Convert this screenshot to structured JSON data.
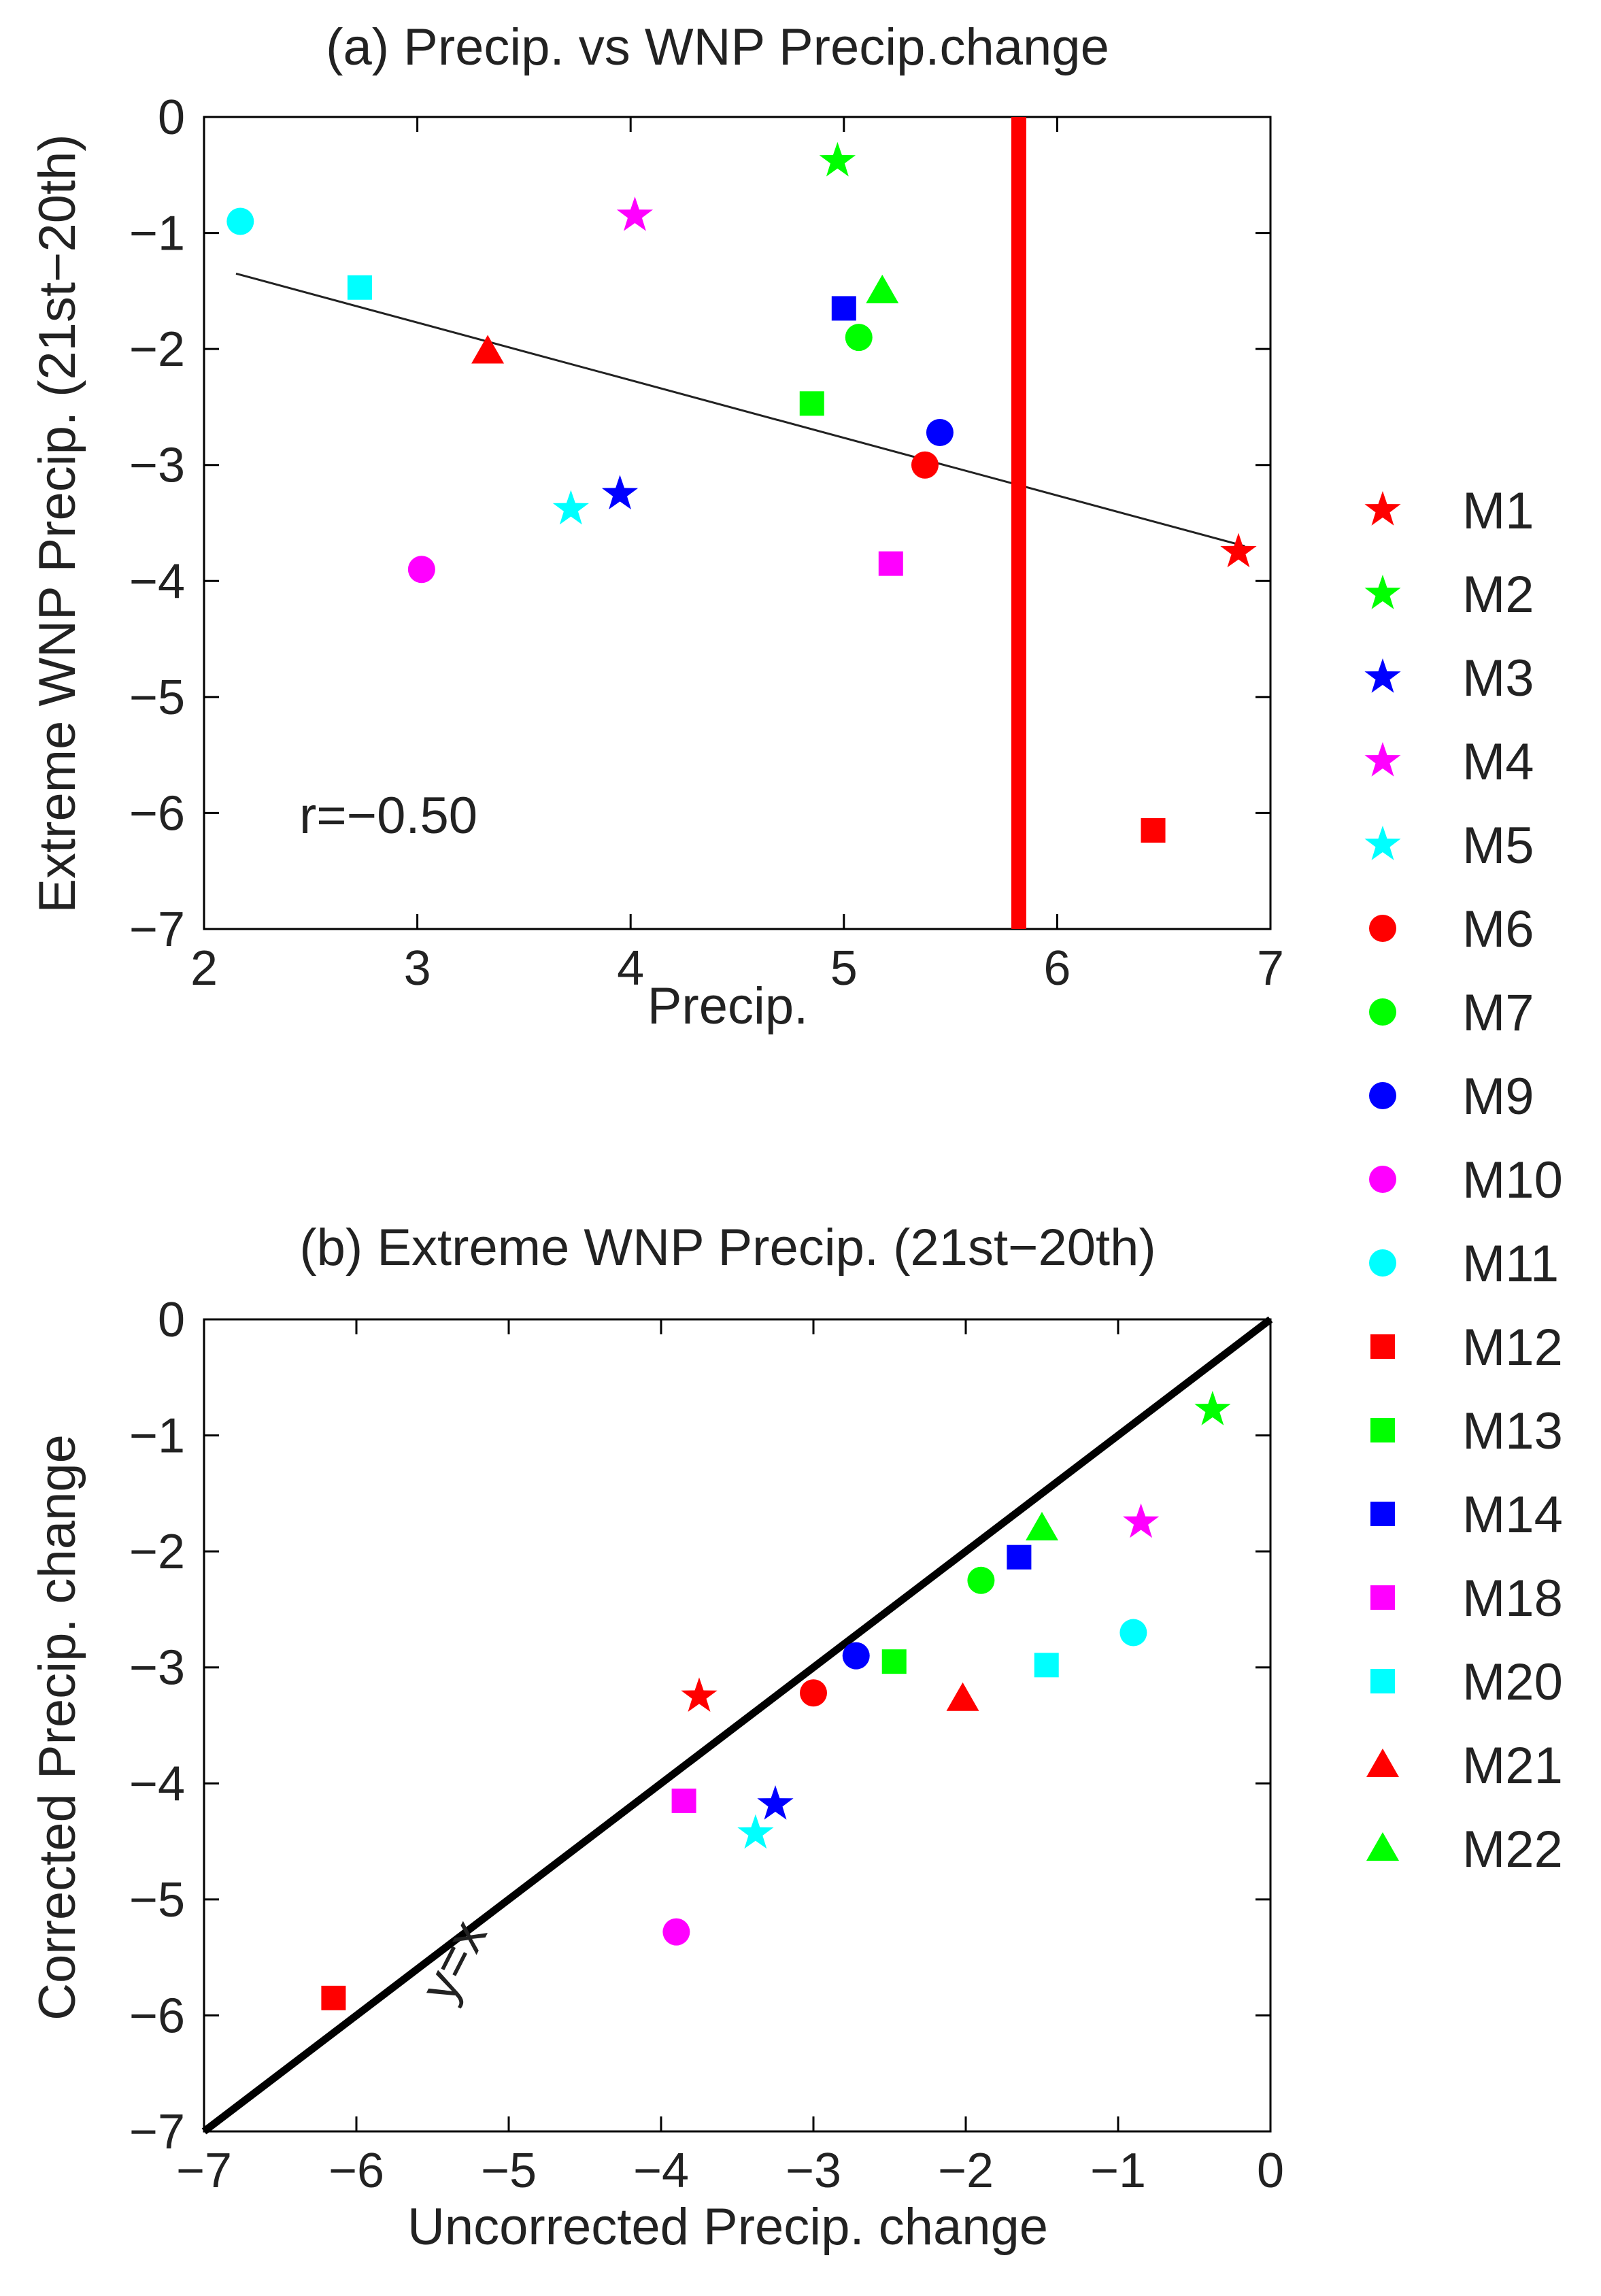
{
  "chart_data": [
    {
      "panel": "a",
      "type": "scatter",
      "title": "(a) Precip. vs WNP Precip.change",
      "xlabel": "Precip.",
      "ylabel": "Extreme WNP Precip. (21st−20th)",
      "xlim": [
        2,
        7
      ],
      "ylim": [
        -7,
        0
      ],
      "xticks": [
        2,
        3,
        4,
        5,
        6,
        7
      ],
      "yticks": [
        0,
        -1,
        -2,
        -3,
        -4,
        -5,
        -6,
        -7
      ],
      "grid": false,
      "annotation": "r=−0.50",
      "regression_line": {
        "x": [
          2.15,
          6.88
        ],
        "y": [
          -1.35,
          -3.7
        ]
      },
      "vertical_line": {
        "x": 5.82,
        "color": "#ff0000"
      },
      "points": [
        {
          "name": "M1",
          "x": 6.85,
          "y": -3.75
        },
        {
          "name": "M2",
          "x": 4.97,
          "y": -0.38
        },
        {
          "name": "M3",
          "x": 3.95,
          "y": -3.25
        },
        {
          "name": "M4",
          "x": 4.02,
          "y": -0.85
        },
        {
          "name": "M5",
          "x": 3.72,
          "y": -3.38
        },
        {
          "name": "M6",
          "x": 5.38,
          "y": -3.0
        },
        {
          "name": "M7",
          "x": 5.07,
          "y": -1.9
        },
        {
          "name": "M9",
          "x": 5.45,
          "y": -2.72
        },
        {
          "name": "M10",
          "x": 3.02,
          "y": -3.9
        },
        {
          "name": "M11",
          "x": 2.17,
          "y": -0.9
        },
        {
          "name": "M12",
          "x": 6.45,
          "y": -6.15
        },
        {
          "name": "M13",
          "x": 4.85,
          "y": -2.47
        },
        {
          "name": "M14",
          "x": 5.0,
          "y": -1.65
        },
        {
          "name": "M18",
          "x": 5.22,
          "y": -3.85
        },
        {
          "name": "M20",
          "x": 2.73,
          "y": -1.47
        },
        {
          "name": "M21",
          "x": 3.33,
          "y": -2.02
        },
        {
          "name": "M22",
          "x": 5.18,
          "y": -1.5
        }
      ]
    },
    {
      "panel": "b",
      "type": "scatter",
      "title": "(b) Extreme WNP Precip. (21st−20th)",
      "xlabel": "Uncorrected Precip. change",
      "ylabel": "Corrected Precip. change",
      "xlim": [
        -7,
        0
      ],
      "ylim": [
        -7,
        0
      ],
      "xticks": [
        -7,
        -6,
        -5,
        -4,
        -3,
        -2,
        -1,
        0
      ],
      "yticks": [
        0,
        -1,
        -2,
        -3,
        -4,
        -5,
        -6,
        -7
      ],
      "grid": false,
      "identity_line_label": "y=x",
      "points": [
        {
          "name": "M1",
          "x": -3.75,
          "y": -3.25
        },
        {
          "name": "M2",
          "x": -0.38,
          "y": -0.78
        },
        {
          "name": "M3",
          "x": -3.25,
          "y": -4.18
        },
        {
          "name": "M4",
          "x": -0.85,
          "y": -1.75
        },
        {
          "name": "M5",
          "x": -3.38,
          "y": -4.43
        },
        {
          "name": "M6",
          "x": -3.0,
          "y": -3.22
        },
        {
          "name": "M7",
          "x": -1.9,
          "y": -2.25
        },
        {
          "name": "M9",
          "x": -2.72,
          "y": -2.9
        },
        {
          "name": "M10",
          "x": -3.9,
          "y": -5.28
        },
        {
          "name": "M11",
          "x": -0.9,
          "y": -2.7
        },
        {
          "name": "M12",
          "x": -6.15,
          "y": -5.85
        },
        {
          "name": "M13",
          "x": -2.47,
          "y": -2.95
        },
        {
          "name": "M14",
          "x": -1.65,
          "y": -2.05
        },
        {
          "name": "M18",
          "x": -3.85,
          "y": -4.15
        },
        {
          "name": "M20",
          "x": -1.47,
          "y": -2.98
        },
        {
          "name": "M21",
          "x": -2.02,
          "y": -3.27
        },
        {
          "name": "M22",
          "x": -1.5,
          "y": -1.8
        }
      ]
    }
  ],
  "legend": {
    "placement": "right",
    "items": [
      {
        "label": "M1",
        "marker": "star",
        "color": "#ff0000"
      },
      {
        "label": "M2",
        "marker": "star",
        "color": "#00ff00"
      },
      {
        "label": "M3",
        "marker": "star",
        "color": "#0000ff"
      },
      {
        "label": "M4",
        "marker": "star",
        "color": "#ff00ff"
      },
      {
        "label": "M5",
        "marker": "star",
        "color": "#00ffff"
      },
      {
        "label": "M6",
        "marker": "circle",
        "color": "#ff0000"
      },
      {
        "label": "M7",
        "marker": "circle",
        "color": "#00ff00"
      },
      {
        "label": "M9",
        "marker": "circle",
        "color": "#0000ff"
      },
      {
        "label": "M10",
        "marker": "circle",
        "color": "#ff00ff"
      },
      {
        "label": "M11",
        "marker": "circle",
        "color": "#00ffff"
      },
      {
        "label": "M12",
        "marker": "square",
        "color": "#ff0000"
      },
      {
        "label": "M13",
        "marker": "square",
        "color": "#00ff00"
      },
      {
        "label": "M14",
        "marker": "square",
        "color": "#0000ff"
      },
      {
        "label": "M18",
        "marker": "square",
        "color": "#ff00ff"
      },
      {
        "label": "M20",
        "marker": "square",
        "color": "#00ffff"
      },
      {
        "label": "M21",
        "marker": "triangle",
        "color": "#ff0000"
      },
      {
        "label": "M22",
        "marker": "triangle",
        "color": "#00ff00"
      }
    ]
  }
}
